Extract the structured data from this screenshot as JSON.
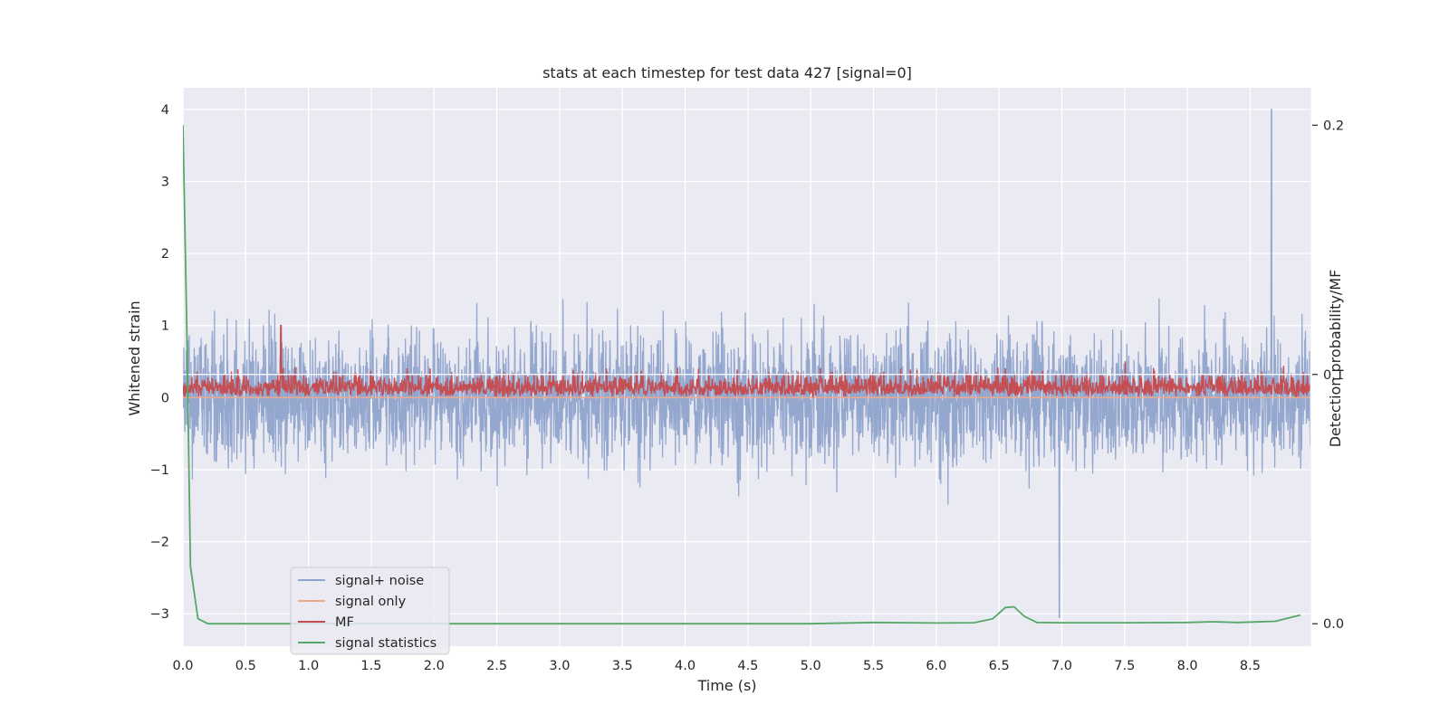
{
  "chart_data": {
    "type": "line",
    "title": "stats at each timestep for test data 427 [signal=0]",
    "xlabel": "Time (s)",
    "ylabel": "Whitened strain",
    "y2label": "Detection probability/MF",
    "xlim": [
      0.0,
      8.98
    ],
    "ylim": [
      -3.45,
      4.3
    ],
    "y2lim": [
      -0.009,
      0.215
    ],
    "xticks": [
      "0.0",
      "0.5",
      "1.0",
      "1.5",
      "2.0",
      "2.5",
      "3.0",
      "3.5",
      "4.0",
      "4.5",
      "5.0",
      "5.5",
      "6.0",
      "6.5",
      "7.0",
      "7.5",
      "8.0",
      "8.5"
    ],
    "yticks": [
      "4",
      "3",
      "2",
      "1",
      "0",
      "−1",
      "−2",
      "−3"
    ],
    "y2ticks": [
      "0.2",
      "0.1",
      "0.0"
    ],
    "grid": true,
    "legend": {
      "placement": "lower-left",
      "entries": [
        "signal+ noise",
        "signal only",
        "MF",
        "signal statistics"
      ]
    },
    "colors": {
      "signal_noise": "#8fa3cc",
      "signal_only": "#f0a888",
      "mf": "#c44e52",
      "signal_statistics": "#55a868",
      "axes_bg": "#eaeaf2",
      "grid": "#ffffff"
    },
    "series": [
      {
        "name": "signal+ noise",
        "axis": "left",
        "description_range": [
          -3.1,
          4.0
        ],
        "envelope": {
          "upper_typical": 2.0,
          "lower_typical": -2.0,
          "max": 4.0,
          "max_at": 8.67,
          "min": -3.05,
          "min_at": 6.98
        }
      },
      {
        "name": "signal only",
        "axis": "left",
        "x": [
          0.0,
          8.98
        ],
        "y": [
          0.0,
          0.0
        ]
      },
      {
        "name": "MF",
        "axis": "left",
        "envelope": {
          "baseline": 0.0,
          "upper_typical": 0.55,
          "max": 1.0,
          "max_at": 0.78
        }
      },
      {
        "name": "signal statistics",
        "axis": "right",
        "x": [
          0.0,
          0.03,
          0.06,
          0.12,
          0.2,
          0.5,
          1.0,
          2.0,
          3.0,
          4.0,
          5.0,
          5.5,
          6.0,
          6.3,
          6.45,
          6.55,
          6.62,
          6.7,
          6.8,
          7.0,
          7.5,
          8.0,
          8.2,
          8.4,
          8.7,
          8.9
        ],
        "y": [
          0.2,
          0.12,
          0.023,
          0.002,
          0.0,
          0.0,
          0.0,
          0.0,
          0.0,
          0.0,
          0.0,
          0.0005,
          0.0003,
          0.0004,
          0.002,
          0.0065,
          0.0068,
          0.003,
          0.0005,
          0.0004,
          0.0004,
          0.0005,
          0.0008,
          0.0005,
          0.001,
          0.0035
        ]
      }
    ]
  }
}
